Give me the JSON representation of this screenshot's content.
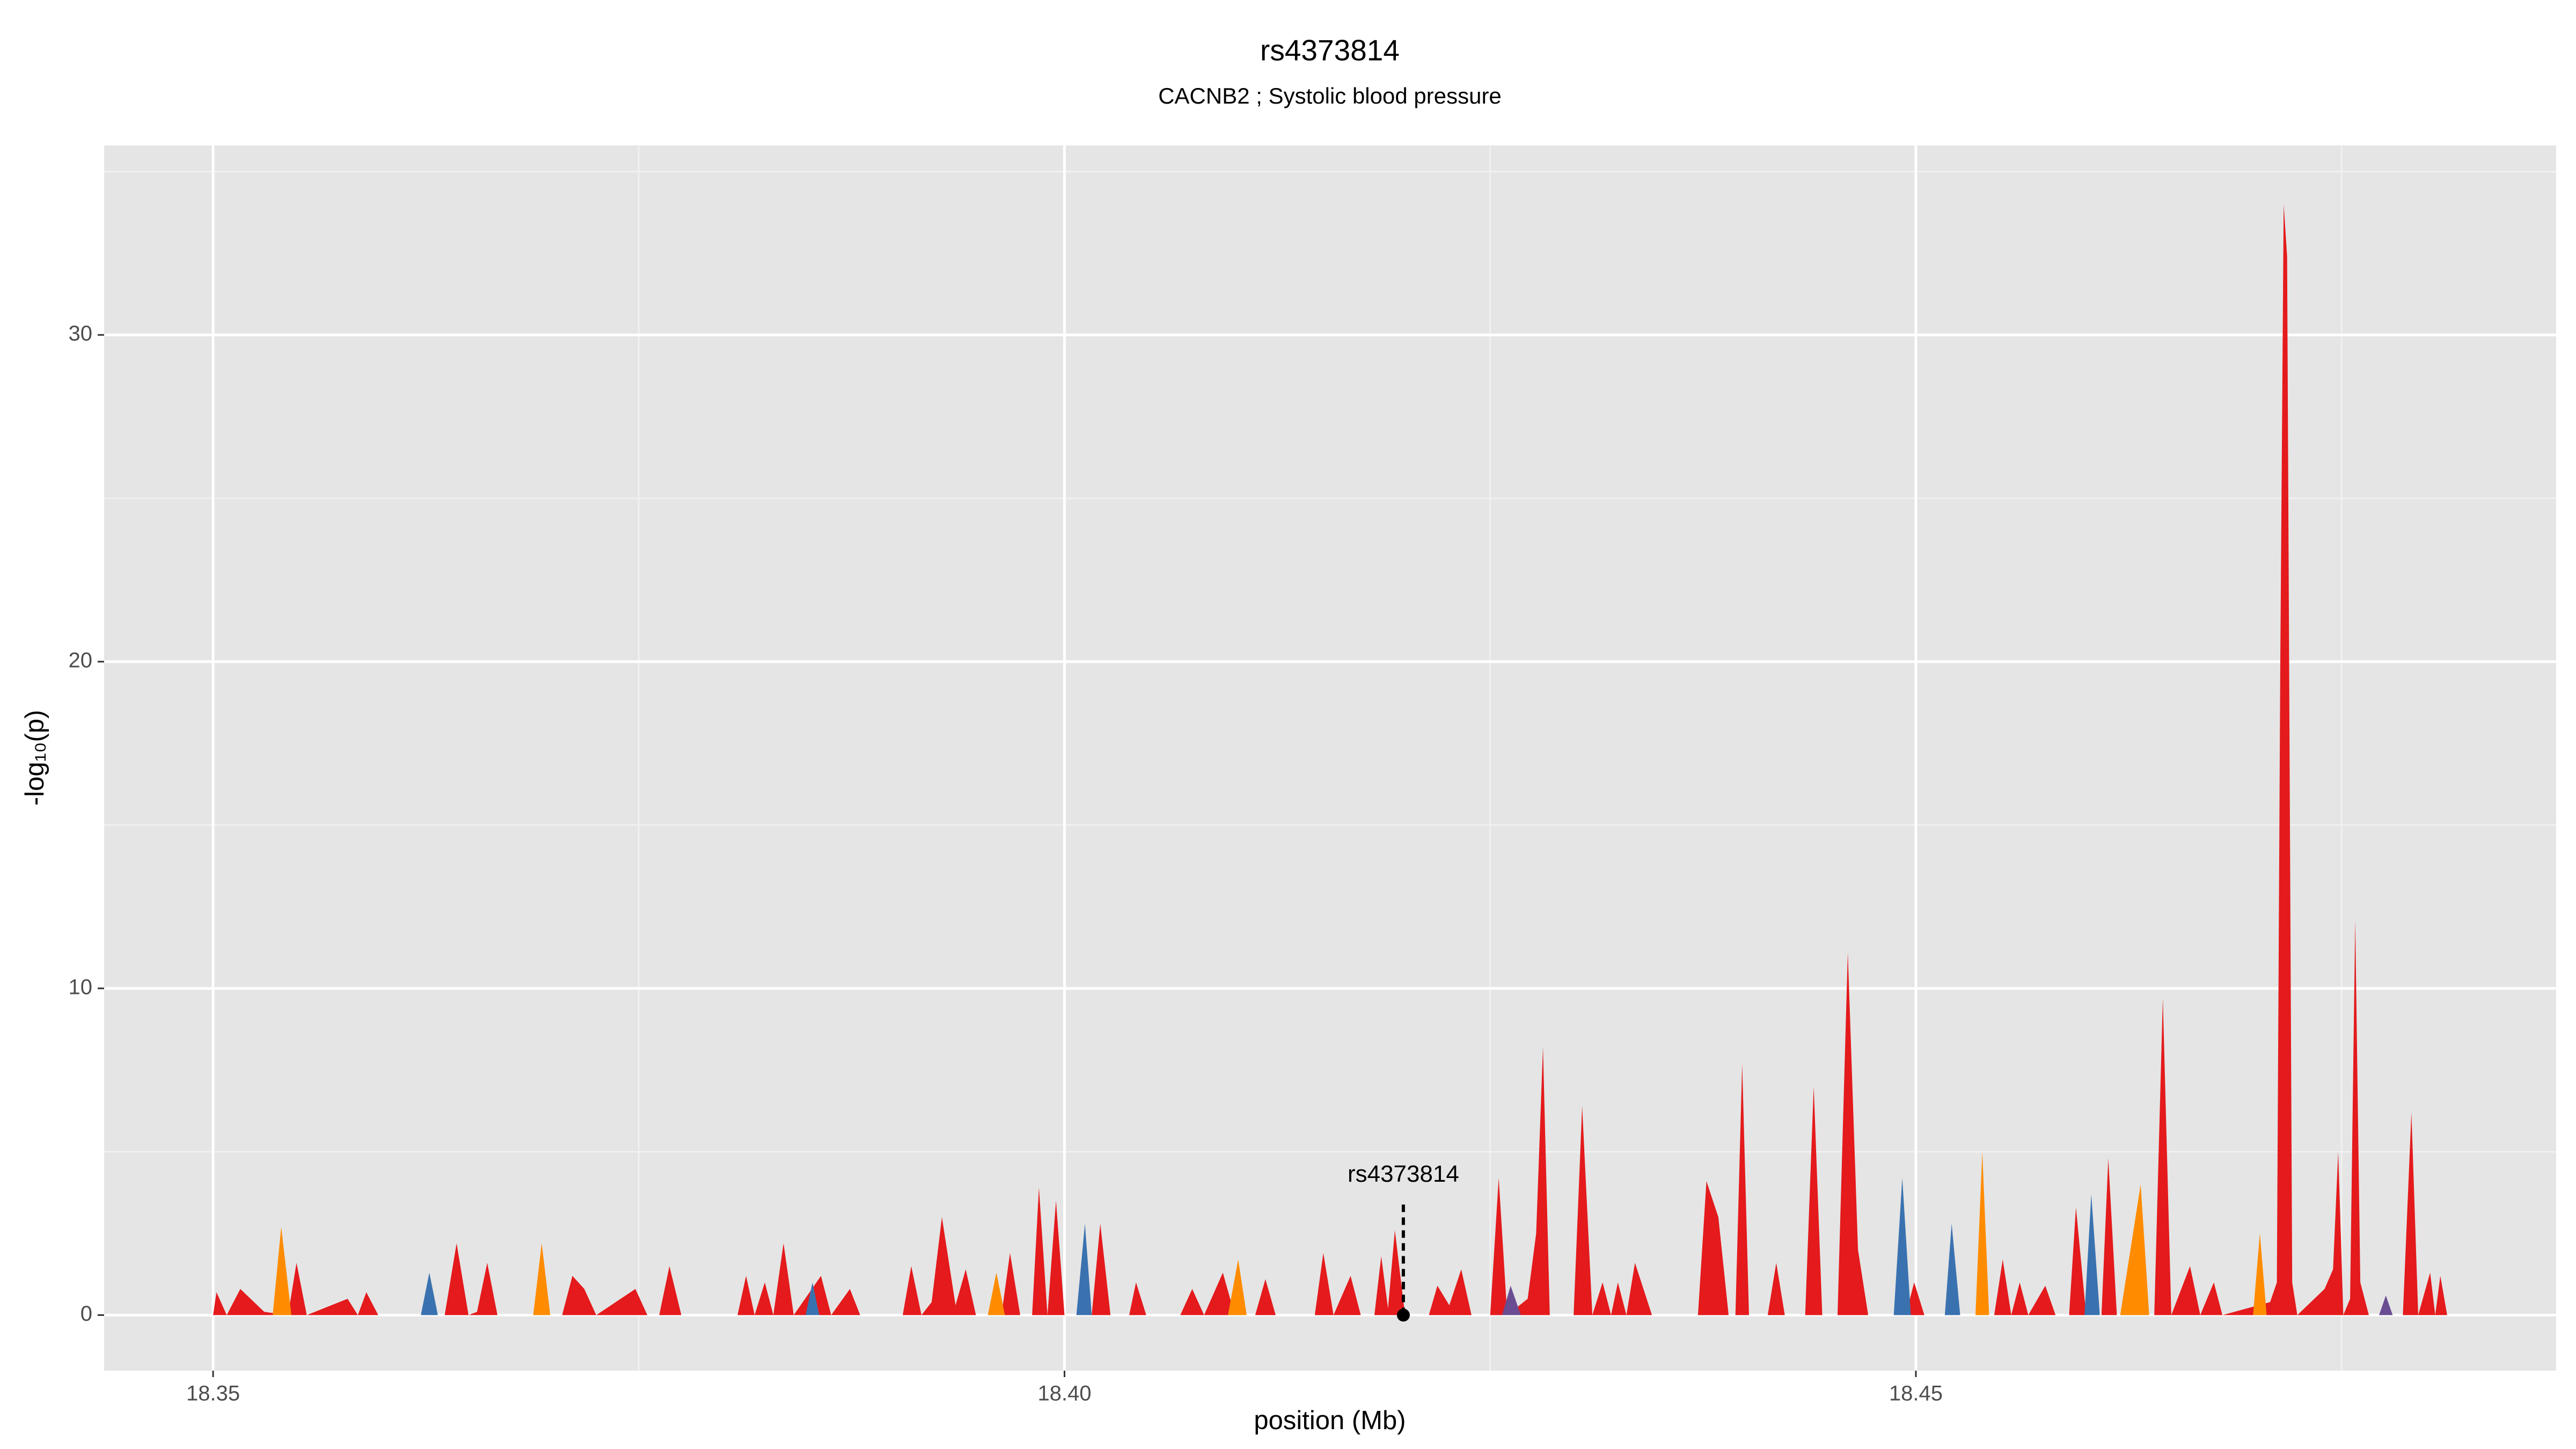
{
  "chart_data": {
    "type": "area",
    "title": "rs4373814",
    "subtitle": "CACNB2 ; Systolic blood pressure",
    "xlabel": "position (Mb)",
    "ylabel": "-log₁₀(p)",
    "xlim": [
      18.3436,
      18.4876
    ],
    "ylim": [
      -1.7,
      35.8
    ],
    "xticks": [
      18.35,
      {
        "value": 18.4,
        "label": "18.40"
      },
      18.45
    ],
    "yticks": [
      0,
      10,
      20,
      30
    ],
    "xminor": [
      18.375,
      18.425,
      18.475
    ],
    "yminor": [
      5,
      15,
      25,
      35
    ],
    "grid": true,
    "background": "#e5e5e5",
    "series": [
      {
        "color": "#e41a1c",
        "x": [
          18.35,
          18.3502,
          18.3508,
          18.3516,
          18.353,
          18.3544,
          18.3549,
          18.3555,
          18.3579,
          18.3585,
          18.359,
          18.3597,
          18.3636,
          18.3643,
          18.365,
          18.3655,
          18.3661,
          18.3667,
          18.3705,
          18.3711,
          18.3718,
          18.3725,
          18.3748,
          18.3755,
          18.3762,
          18.3768,
          18.3775,
          18.3808,
          18.3813,
          18.3818,
          18.3824,
          18.3829,
          18.3835,
          18.3841,
          18.3857,
          18.3863,
          18.3874,
          18.388,
          18.3905,
          18.391,
          18.3916,
          18.3922,
          18.3928,
          18.3936,
          18.3942,
          18.3948,
          18.3963,
          18.3968,
          18.3974,
          18.3981,
          18.3985,
          18.399,
          18.3995,
          18.4,
          18.4016,
          18.4021,
          18.4027,
          18.4038,
          18.4042,
          18.4048,
          18.4068,
          18.4075,
          18.4082,
          18.4093,
          18.41,
          18.4112,
          18.4118,
          18.4124,
          18.4147,
          18.4152,
          18.4158,
          18.4168,
          18.4174,
          18.4182,
          18.4186,
          18.419,
          18.4194,
          18.42,
          18.4214,
          18.4219,
          18.4226,
          18.4233,
          18.4239,
          18.425,
          18.4255,
          18.426,
          18.4272,
          18.4277,
          18.4281,
          18.4285,
          18.4299,
          18.4304,
          18.431,
          18.4316,
          18.4321,
          18.4325,
          18.433,
          18.4335,
          18.4345,
          18.4372,
          18.4377,
          18.4384,
          18.439,
          18.4394,
          18.4398,
          18.4402,
          18.4413,
          18.4418,
          18.4423,
          18.4435,
          18.444,
          18.4445,
          18.4454,
          18.446,
          18.4466,
          18.4472,
          18.4494,
          18.4499,
          18.4505,
          18.4546,
          18.4551,
          18.4556,
          18.4561,
          18.4566,
          18.4576,
          18.4582,
          18.459,
          18.4594,
          18.46,
          18.4609,
          18.4613,
          18.4618,
          18.464,
          18.4645,
          18.465,
          18.4661,
          18.4667,
          18.4675,
          18.468,
          18.4708,
          18.4712,
          18.4714,
          18.4716,
          18.4718,
          18.4721,
          18.4724,
          18.474,
          18.4745,
          18.4748,
          18.4751,
          18.4755,
          18.4758,
          18.4761,
          18.4766,
          18.4786,
          18.4791,
          18.4795,
          18.4802,
          18.4805,
          18.4808,
          18.4812
        ],
        "values": [
          0,
          0.7,
          0,
          0.8,
          0.1,
          0,
          1.6,
          0,
          0.5,
          0,
          0.7,
          0,
          0,
          2.2,
          0,
          0.1,
          1.6,
          0,
          0,
          1.2,
          0.8,
          0,
          0.8,
          0,
          0,
          1.5,
          0,
          0,
          1.2,
          0,
          1.0,
          0,
          2.2,
          0,
          1.2,
          0,
          0.8,
          0,
          0,
          1.5,
          0,
          0.4,
          3.0,
          0.3,
          1.4,
          0,
          0,
          1.9,
          0,
          0,
          3.9,
          0,
          3.5,
          0,
          0,
          2.8,
          0,
          0,
          1.0,
          0,
          0,
          0.8,
          0,
          1.3,
          0,
          0,
          1.1,
          0,
          0,
          1.9,
          0,
          1.2,
          0,
          0,
          1.8,
          0.2,
          2.6,
          0,
          0,
          0.9,
          0.3,
          1.4,
          0,
          0,
          4.2,
          0,
          0.5,
          2.5,
          8.2,
          0,
          0,
          6.4,
          0,
          1.0,
          0,
          1.0,
          0,
          1.6,
          0,
          0,
          4.1,
          3.0,
          0,
          0,
          7.7,
          0,
          0,
          1.6,
          0,
          0,
          7.0,
          0,
          0,
          11.1,
          2.0,
          0,
          0,
          1.0,
          0,
          0,
          1.7,
          0,
          1.0,
          0,
          0.9,
          0,
          0,
          3.3,
          0,
          0,
          4.8,
          0,
          0,
          9.7,
          0,
          1.5,
          0,
          1.0,
          0,
          0.4,
          1.0,
          20,
          34.0,
          32.4,
          1.0,
          0,
          0.8,
          1.4,
          5.0,
          0,
          0.5,
          12.1,
          1.0,
          0,
          0,
          6.2,
          0,
          1.3,
          0,
          1.2,
          0
        ]
      },
      {
        "color": "#ff8c00",
        "x": [
          18.3535,
          18.354,
          18.3546,
          18.3688,
          18.3693,
          18.3698,
          18.3955,
          18.396,
          18.3965,
          18.4096,
          18.4102,
          18.4107,
          18.4535,
          18.4539,
          18.4543,
          18.462,
          18.4632,
          18.4637,
          18.4698,
          18.4702,
          18.4706
        ],
        "values": [
          0,
          2.7,
          0,
          0,
          2.2,
          0,
          0,
          1.3,
          0,
          0,
          1.7,
          0,
          0,
          5.0,
          0,
          0,
          4.0,
          0,
          0,
          2.5,
          0
        ]
      },
      {
        "color": "#3a72b0",
        "x": [
          18.3622,
          18.3627,
          18.3632,
          18.3848,
          18.3852,
          18.3856,
          18.4007,
          18.4012,
          18.4016,
          18.4487,
          18.4492,
          18.4497,
          18.4517,
          18.4521,
          18.4526,
          18.4599,
          18.4603,
          18.4608
        ],
        "values": [
          0,
          1.3,
          0,
          0,
          1.0,
          0,
          0,
          2.8,
          0,
          0,
          4.2,
          0,
          0,
          2.8,
          0,
          0,
          3.7,
          0
        ]
      },
      {
        "color": "#6a4c93",
        "x": [
          18.4257,
          18.4262,
          18.4268,
          18.4772,
          18.4776,
          18.478
        ],
        "values": [
          0,
          0.9,
          0,
          0,
          0.6,
          0
        ]
      }
    ],
    "annotation": {
      "label": "rs4373814",
      "x": 18.4199,
      "y": 0
    }
  }
}
